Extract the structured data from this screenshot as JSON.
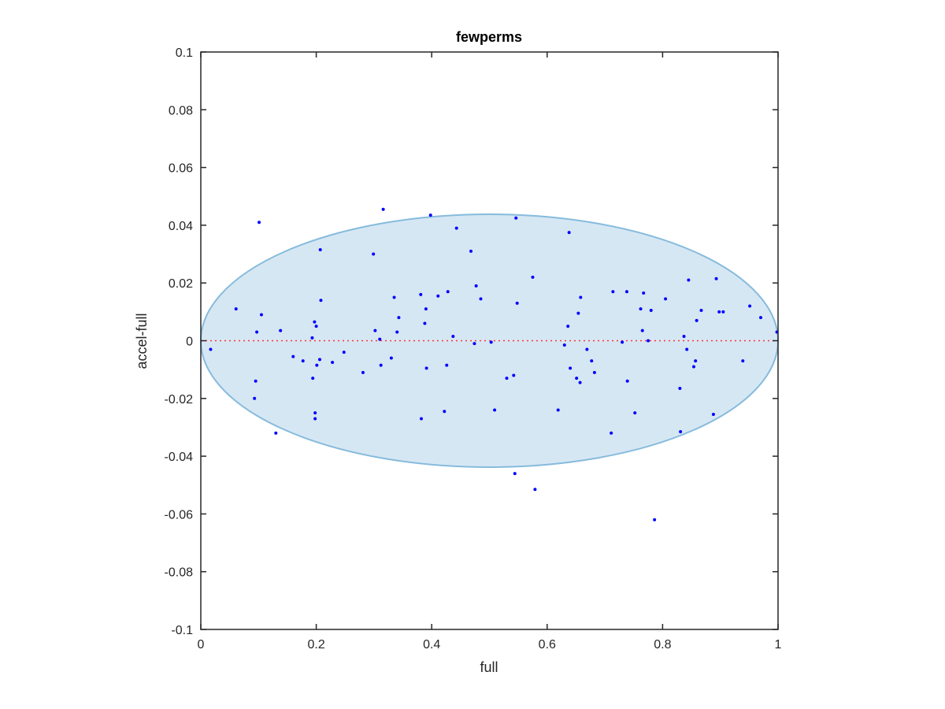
{
  "chart_data": {
    "type": "scatter",
    "title": "fewperms",
    "xlabel": "full",
    "ylabel": "accel-full",
    "xlim": [
      0,
      1
    ],
    "ylim": [
      -0.1,
      0.1
    ],
    "xticks": [
      0,
      0.2,
      0.4,
      0.6,
      0.8,
      1
    ],
    "xtick_labels": [
      "0",
      "0.2",
      "0.4",
      "0.6",
      "0.8",
      "1"
    ],
    "yticks": [
      -0.1,
      -0.08,
      -0.06,
      -0.04,
      -0.02,
      0,
      0.02,
      0.04,
      0.06,
      0.08,
      0.1
    ],
    "ytick_labels": [
      "-0.1",
      "-0.08",
      "-0.06",
      "-0.04",
      "-0.02",
      "0",
      "0.02",
      "0.04",
      "0.06",
      "0.08",
      "0.1"
    ],
    "grid": false,
    "legend": "none",
    "colors": {
      "points": "#0000ff",
      "zero_line": "#ff3333",
      "ellipse_fill": "#d6e7f4",
      "ellipse_stroke": "#86bbdc",
      "axes": "#262626"
    },
    "ellipse": {
      "cx": 0.5,
      "cy": 0,
      "rx": 0.5,
      "ry": 0.0438
    },
    "reference_line": {
      "y": 0,
      "style": "dotted"
    },
    "points": [
      [
        0.017,
        -0.003
      ],
      [
        0.061,
        0.011
      ],
      [
        0.093,
        -0.02
      ],
      [
        0.095,
        -0.014
      ],
      [
        0.097,
        0.003
      ],
      [
        0.101,
        0.041
      ],
      [
        0.105,
        0.009
      ],
      [
        0.13,
        -0.032
      ],
      [
        0.138,
        0.0035
      ],
      [
        0.16,
        -0.0055
      ],
      [
        0.177,
        -0.007
      ],
      [
        0.193,
        0.001
      ],
      [
        0.194,
        -0.013
      ],
      [
        0.197,
        0.0065
      ],
      [
        0.198,
        -0.025
      ],
      [
        0.198,
        -0.027
      ],
      [
        0.2,
        0.005
      ],
      [
        0.201,
        -0.0085
      ],
      [
        0.206,
        -0.0065
      ],
      [
        0.207,
        0.0315
      ],
      [
        0.208,
        0.014
      ],
      [
        0.228,
        -0.0075
      ],
      [
        0.248,
        -0.004
      ],
      [
        0.281,
        -0.011
      ],
      [
        0.299,
        0.03
      ],
      [
        0.302,
        0.0035
      ],
      [
        0.31,
        0.0005
      ],
      [
        0.312,
        -0.0085
      ],
      [
        0.316,
        0.0455
      ],
      [
        0.33,
        -0.006
      ],
      [
        0.335,
        0.015
      ],
      [
        0.34,
        0.003
      ],
      [
        0.343,
        0.008
      ],
      [
        0.381,
        0.016
      ],
      [
        0.382,
        -0.027
      ],
      [
        0.388,
        0.006
      ],
      [
        0.39,
        0.011
      ],
      [
        0.391,
        -0.0095
      ],
      [
        0.398,
        0.0435
      ],
      [
        0.411,
        0.0155
      ],
      [
        0.422,
        -0.0245
      ],
      [
        0.426,
        -0.0085
      ],
      [
        0.428,
        0.017
      ],
      [
        0.437,
        0.0015
      ],
      [
        0.443,
        0.039
      ],
      [
        0.468,
        0.031
      ],
      [
        0.474,
        -0.001
      ],
      [
        0.477,
        0.019
      ],
      [
        0.485,
        0.0145
      ],
      [
        0.503,
        -0.0005
      ],
      [
        0.509,
        -0.024
      ],
      [
        0.53,
        -0.013
      ],
      [
        0.542,
        -0.012
      ],
      [
        0.544,
        -0.046
      ],
      [
        0.546,
        0.0425
      ],
      [
        0.548,
        0.013
      ],
      [
        0.575,
        0.022
      ],
      [
        0.579,
        -0.0515
      ],
      [
        0.619,
        -0.024
      ],
      [
        0.63,
        -0.0015
      ],
      [
        0.636,
        0.005
      ],
      [
        0.638,
        0.0375
      ],
      [
        0.64,
        -0.0095
      ],
      [
        0.651,
        -0.013
      ],
      [
        0.654,
        0.0095
      ],
      [
        0.657,
        -0.0145
      ],
      [
        0.658,
        0.015
      ],
      [
        0.669,
        -0.003
      ],
      [
        0.677,
        -0.007
      ],
      [
        0.682,
        -0.011
      ],
      [
        0.711,
        -0.032
      ],
      [
        0.714,
        0.017
      ],
      [
        0.73,
        -0.0005
      ],
      [
        0.738,
        0.017
      ],
      [
        0.739,
        -0.014
      ],
      [
        0.752,
        -0.025
      ],
      [
        0.762,
        0.011
      ],
      [
        0.765,
        0.0035
      ],
      [
        0.767,
        0.0165
      ],
      [
        0.775,
        0.0
      ],
      [
        0.78,
        0.0105
      ],
      [
        0.786,
        -0.062
      ],
      [
        0.805,
        0.0145
      ],
      [
        0.83,
        -0.0165
      ],
      [
        0.831,
        -0.0315
      ],
      [
        0.837,
        0.0015
      ],
      [
        0.842,
        -0.003
      ],
      [
        0.845,
        0.021
      ],
      [
        0.854,
        -0.009
      ],
      [
        0.857,
        -0.007
      ],
      [
        0.859,
        0.007
      ],
      [
        0.867,
        0.0105
      ],
      [
        0.888,
        -0.0255
      ],
      [
        0.893,
        0.0215
      ],
      [
        0.898,
        0.01
      ],
      [
        0.905,
        0.01
      ],
      [
        0.939,
        -0.007
      ],
      [
        0.951,
        0.012
      ],
      [
        0.97,
        0.008
      ],
      [
        0.998,
        0.003
      ]
    ]
  }
}
